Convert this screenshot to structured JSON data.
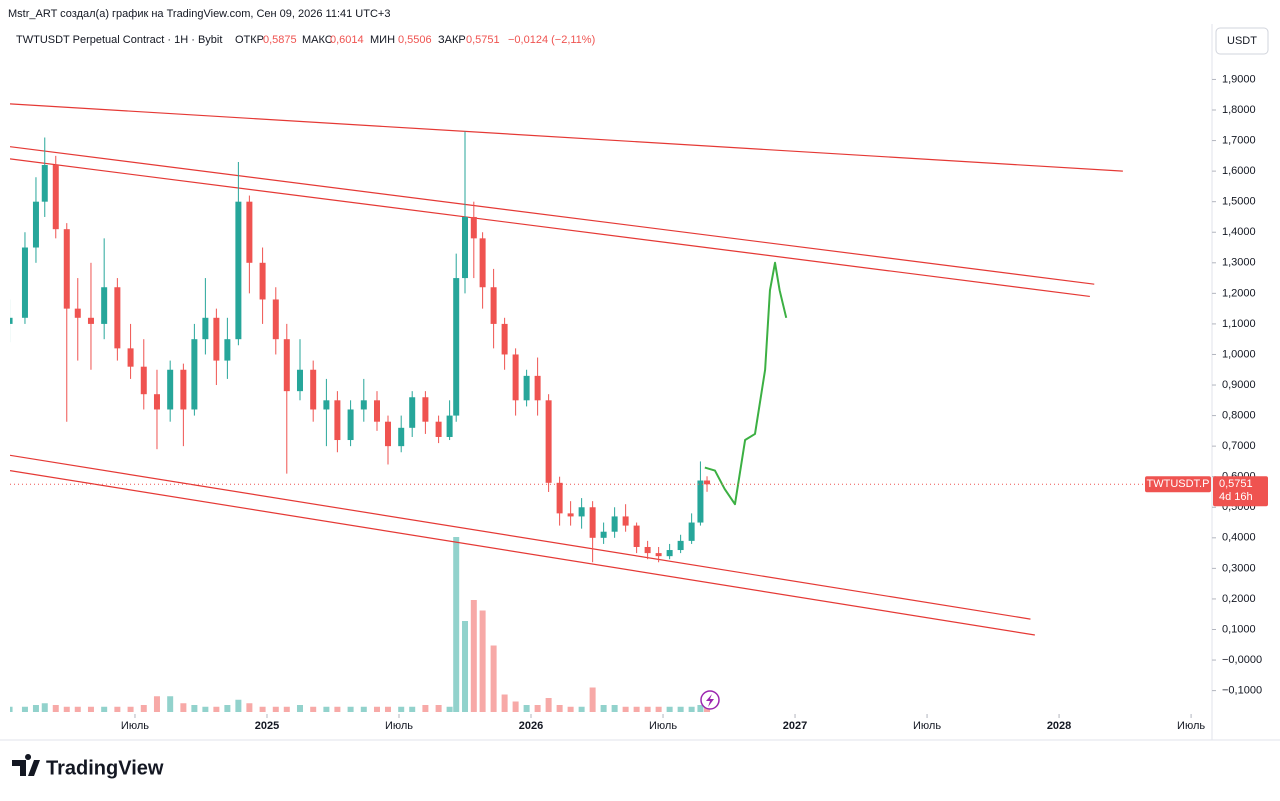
{
  "header": {
    "author_line": "Mstr_ART создал(а) график на TradingView.com, Сен 09, 2026 11:41 UTC+3",
    "symbol": "TWTUSDT Perpetual Contract · 1H · Bybit",
    "open_label": "ОТКР",
    "open": "0,5875",
    "high_label": "МАКС",
    "high": "0,6014",
    "low_label": "МИН",
    "low": "0,5506",
    "close_label": "ЗАКР",
    "close": "0,5751",
    "change": "−0,0124 (−2,11%)",
    "currency": "USDT"
  },
  "footer": {
    "brand": "TradingView"
  },
  "chart_data": {
    "type": "candlestick",
    "up_color": "#26a69a",
    "down_color": "#ef5350",
    "xlim": [
      0.32,
      54.86
    ],
    "ylim": [
      -0.17,
      1.98
    ],
    "xticks": [
      {
        "value": 6,
        "label": "Июль"
      },
      {
        "value": 12,
        "label": "2025"
      },
      {
        "value": 18,
        "label": "Июль"
      },
      {
        "value": 24,
        "label": "2026"
      },
      {
        "value": 30,
        "label": "Июль"
      },
      {
        "value": 36,
        "label": "2027"
      },
      {
        "value": 42,
        "label": "Июль"
      },
      {
        "value": 48,
        "label": "2028"
      },
      {
        "value": 54,
        "label": "Июль"
      }
    ],
    "yticks": [
      {
        "value": 1.9,
        "label": "1,9000"
      },
      {
        "value": 1.8,
        "label": "1,8000"
      },
      {
        "value": 1.7,
        "label": "1,7000"
      },
      {
        "value": 1.6,
        "label": "1,6000"
      },
      {
        "value": 1.5,
        "label": "1,5000"
      },
      {
        "value": 1.4,
        "label": "1,4000"
      },
      {
        "value": 1.3,
        "label": "1,3000"
      },
      {
        "value": 1.2,
        "label": "1,2000"
      },
      {
        "value": 1.1,
        "label": "1,1000"
      },
      {
        "value": 1.0,
        "label": "1,0000"
      },
      {
        "value": 0.9,
        "label": "0,9000"
      },
      {
        "value": 0.8,
        "label": "0,8000"
      },
      {
        "value": 0.7,
        "label": "0,7000"
      },
      {
        "value": 0.6,
        "label": "0,6000"
      },
      {
        "value": 0.5,
        "label": "0,5000"
      },
      {
        "value": 0.4,
        "label": "0,4000"
      },
      {
        "value": 0.3,
        "label": "0,3000"
      },
      {
        "value": 0.2,
        "label": "0,2000"
      },
      {
        "value": 0.1,
        "label": "0,1000"
      },
      {
        "value": 0,
        "label": "−0,0000"
      },
      {
        "value": -0.1,
        "label": "−0,1000"
      }
    ],
    "x": [
      0.3,
      1.0,
      1.5,
      1.9,
      2.4,
      2.9,
      3.4,
      4.0,
      4.6,
      5.2,
      5.8,
      6.4,
      7.0,
      7.6,
      8.2,
      8.7,
      9.2,
      9.7,
      10.2,
      10.7,
      11.2,
      11.8,
      12.4,
      12.9,
      13.5,
      14.1,
      14.7,
      15.2,
      15.8,
      16.4,
      17.0,
      17.5,
      18.1,
      18.6,
      19.2,
      19.8,
      20.3,
      20.6,
      21.0,
      21.4,
      21.8,
      22.3,
      22.8,
      23.3,
      23.8,
      24.3,
      24.8,
      25.3,
      25.8,
      26.3,
      26.8,
      27.3,
      27.8,
      28.3,
      28.8,
      29.3,
      29.8,
      30.3,
      30.8,
      31.3,
      31.7,
      32.0
    ],
    "open": [
      1.1,
      1.12,
      1.35,
      1.5,
      1.62,
      1.41,
      1.15,
      1.12,
      1.1,
      1.22,
      1.02,
      0.96,
      0.87,
      0.82,
      0.95,
      0.82,
      1.05,
      1.12,
      0.98,
      1.05,
      1.5,
      1.3,
      1.18,
      1.05,
      0.88,
      0.95,
      0.82,
      0.85,
      0.72,
      0.82,
      0.85,
      0.78,
      0.7,
      0.76,
      0.86,
      0.78,
      0.73,
      0.8,
      1.25,
      1.45,
      1.38,
      1.22,
      1.1,
      1.0,
      0.85,
      0.93,
      0.85,
      0.58,
      0.48,
      0.47,
      0.5,
      0.4,
      0.42,
      0.47,
      0.44,
      0.37,
      0.35,
      0.34,
      0.36,
      0.39,
      0.45,
      0.5875
    ],
    "high": [
      1.18,
      1.4,
      1.58,
      1.71,
      1.65,
      1.43,
      1.25,
      1.3,
      1.38,
      1.25,
      1.1,
      1.05,
      0.95,
      0.98,
      0.97,
      1.1,
      1.25,
      1.15,
      1.12,
      1.63,
      1.52,
      1.35,
      1.22,
      1.1,
      1.05,
      0.98,
      0.92,
      0.88,
      0.85,
      0.92,
      0.88,
      0.8,
      0.8,
      0.88,
      0.88,
      0.8,
      0.85,
      1.33,
      1.73,
      1.5,
      1.4,
      1.28,
      1.12,
      1.02,
      0.95,
      0.99,
      0.87,
      0.6,
      0.52,
      0.53,
      0.52,
      0.45,
      0.5,
      0.51,
      0.45,
      0.39,
      0.37,
      0.38,
      0.41,
      0.48,
      0.65,
      0.6014
    ],
    "low": [
      1.04,
      1.1,
      1.3,
      1.45,
      1.38,
      0.78,
      0.98,
      0.95,
      1.05,
      0.98,
      0.92,
      0.82,
      0.69,
      0.78,
      0.7,
      0.8,
      1.0,
      0.9,
      0.92,
      1.03,
      1.2,
      1.1,
      1.0,
      0.61,
      0.85,
      0.78,
      0.7,
      0.68,
      0.7,
      0.78,
      0.75,
      0.64,
      0.68,
      0.73,
      0.74,
      0.71,
      0.72,
      0.78,
      1.2,
      1.25,
      1.15,
      1.02,
      0.95,
      0.8,
      0.83,
      0.8,
      0.55,
      0.44,
      0.44,
      0.43,
      0.32,
      0.38,
      0.4,
      0.42,
      0.35,
      0.33,
      0.32,
      0.33,
      0.35,
      0.38,
      0.44,
      0.5506
    ],
    "close": [
      1.12,
      1.35,
      1.5,
      1.62,
      1.41,
      1.15,
      1.12,
      1.1,
      1.22,
      1.02,
      0.96,
      0.87,
      0.82,
      0.95,
      0.82,
      1.05,
      1.12,
      0.98,
      1.05,
      1.5,
      1.3,
      1.18,
      1.05,
      0.88,
      0.95,
      0.82,
      0.85,
      0.72,
      0.82,
      0.85,
      0.78,
      0.7,
      0.76,
      0.86,
      0.78,
      0.73,
      0.8,
      1.25,
      1.45,
      1.38,
      1.22,
      1.1,
      1.0,
      0.85,
      0.93,
      0.85,
      0.58,
      0.48,
      0.47,
      0.5,
      0.4,
      0.42,
      0.47,
      0.44,
      0.37,
      0.35,
      0.34,
      0.36,
      0.39,
      0.45,
      0.5875,
      0.5751
    ],
    "volume": [
      3,
      3,
      4,
      5,
      4,
      3,
      3,
      3,
      3,
      3,
      3,
      4,
      9,
      9,
      5,
      4,
      3,
      3,
      4,
      7,
      5,
      3,
      3,
      3,
      4,
      3,
      3,
      3,
      3,
      3,
      3,
      3,
      3,
      3,
      4,
      4,
      3,
      100,
      52,
      64,
      58,
      38,
      10,
      6,
      4,
      4,
      8,
      4,
      3,
      3,
      14,
      4,
      4,
      3,
      3,
      3,
      3,
      3,
      3,
      3,
      4,
      5
    ],
    "vlim": [
      0,
      100
    ],
    "trend_color": "#e53935",
    "trendlines": [
      {
        "x": [
          0.32,
          50.9
        ],
        "y": [
          1.82,
          1.6
        ]
      },
      {
        "x": [
          0.32,
          49.6
        ],
        "y": [
          1.68,
          1.23
        ]
      },
      {
        "x": [
          0.32,
          49.4
        ],
        "y": [
          1.64,
          1.19
        ]
      },
      {
        "x": [
          0.32,
          46.7
        ],
        "y": [
          0.67,
          0.134
        ]
      },
      {
        "x": [
          0.32,
          46.9
        ],
        "y": [
          0.62,
          0.082
        ]
      }
    ],
    "forecast": {
      "color": "#3cb043",
      "x": [
        31.9,
        32.36,
        32.8,
        33.27,
        33.73,
        34.18,
        34.64,
        34.86,
        35.09,
        35.3,
        35.6
      ],
      "y": [
        0.63,
        0.62,
        0.56,
        0.51,
        0.72,
        0.74,
        0.95,
        1.21,
        1.3,
        1.21,
        1.12
      ]
    },
    "last_price": {
      "value": 0.5751,
      "label": "0,5751"
    },
    "symbol_tag": "TWTUSDT.P",
    "countdown": "4d 16h"
  }
}
